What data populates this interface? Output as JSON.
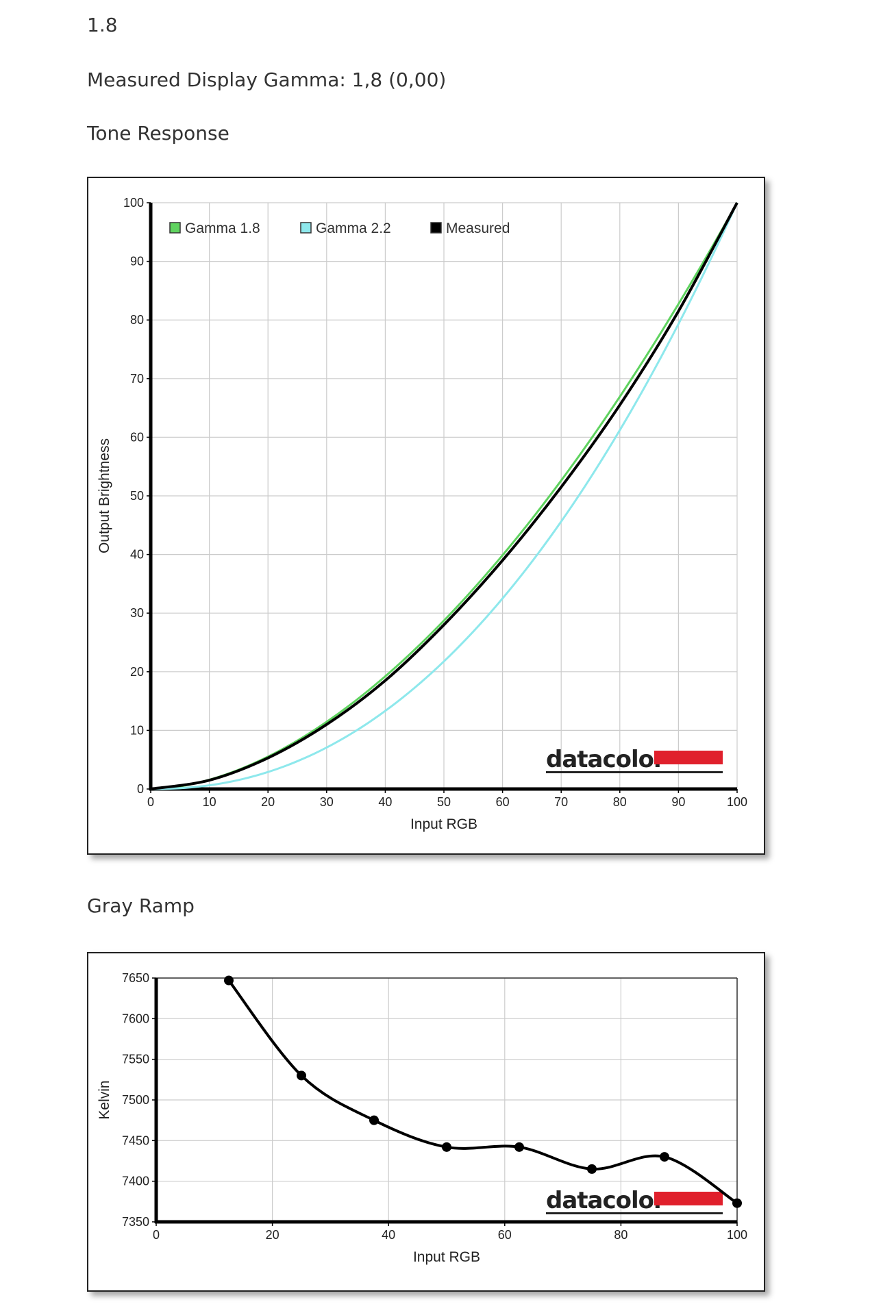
{
  "header": {
    "value": "1.8",
    "measured_gamma": "Measured Display Gamma: 1,8 (0,00)"
  },
  "sections": {
    "tone_title": "Tone Response",
    "gray_title": "Gray Ramp"
  },
  "logo": "datacolor",
  "colors": {
    "gamma18": "#5fd35f",
    "gamma22": "#8ee8ec",
    "measured": "#000000",
    "logo_bar": "#e0202c"
  },
  "chart_data": [
    {
      "type": "line",
      "title": "Tone Response",
      "xlabel": "Input RGB",
      "ylabel": "Output Brightness",
      "xlim": [
        0,
        100
      ],
      "ylim": [
        0,
        100
      ],
      "xticks": [
        0,
        10,
        20,
        30,
        40,
        50,
        60,
        70,
        80,
        90,
        100
      ],
      "yticks": [
        0,
        10,
        20,
        30,
        40,
        50,
        60,
        70,
        80,
        90,
        100
      ],
      "grid": true,
      "legend_position": "top",
      "series": [
        {
          "name": "Gamma 1.8",
          "gamma": 1.8,
          "color": "#5fd35f"
        },
        {
          "name": "Gamma 2.2",
          "gamma": 2.2,
          "color": "#8ee8ec"
        },
        {
          "name": "Measured",
          "color": "#000000",
          "x": [
            0,
            10,
            20,
            30,
            40,
            50,
            60,
            70,
            80,
            90,
            100
          ],
          "y": [
            0,
            1.5,
            5.3,
            11.0,
            18.5,
            28.0,
            39.0,
            51.5,
            65.5,
            81.5,
            100
          ]
        }
      ]
    },
    {
      "type": "line",
      "title": "Gray Ramp",
      "xlabel": "Input RGB",
      "ylabel": "Kelvin",
      "xlim": [
        0,
        100
      ],
      "ylim": [
        7350,
        7650
      ],
      "xticks": [
        0,
        20,
        40,
        60,
        80,
        100
      ],
      "yticks": [
        7350,
        7400,
        7450,
        7500,
        7550,
        7600,
        7650
      ],
      "grid": true,
      "series": [
        {
          "name": "",
          "color": "#000000",
          "x": [
            12.5,
            25,
            37.5,
            50,
            62.5,
            75,
            87.5,
            100
          ],
          "y": [
            7647,
            7530,
            7475,
            7442,
            7442,
            7415,
            7430,
            7373
          ]
        }
      ]
    }
  ]
}
